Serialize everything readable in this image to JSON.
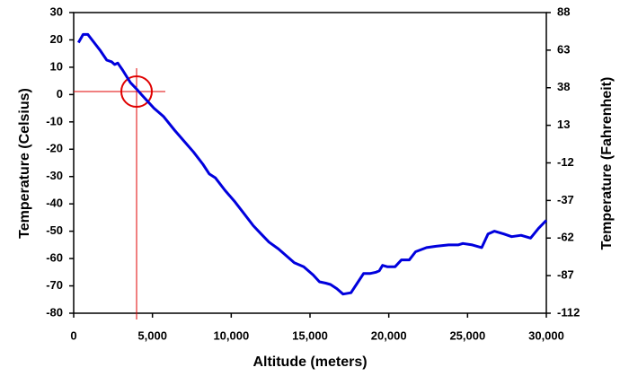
{
  "chart_data": {
    "type": "line",
    "x_label": "Altitude (meters)",
    "y_label": "Temperature (Celsius)",
    "y2_label": "Temperature (Fahrenheit)",
    "color": "#0000dd",
    "x": [
      300,
      600,
      900,
      1300,
      1700,
      2100,
      2400,
      2600,
      2800,
      3100,
      3600,
      4000,
      4300,
      4700,
      5100,
      5700,
      6400,
      7000,
      7600,
      8200,
      8600,
      9000,
      9600,
      10200,
      10800,
      11400,
      11900,
      12400,
      13000,
      13600,
      14000,
      14600,
      15200,
      15600,
      16000,
      16300,
      16700,
      17100,
      17600,
      18000,
      18400,
      18800,
      19200,
      19400,
      19600,
      19900,
      20400,
      20800,
      21300,
      21700,
      22400,
      23000,
      23800,
      24400,
      24700,
      25300,
      25900,
      26300,
      26700,
      27300,
      27800,
      28400,
      29000,
      29500,
      30000
    ],
    "values": [
      19,
      22,
      22,
      19,
      16,
      12.6,
      12,
      11,
      11.5,
      9,
      4.4,
      2,
      0,
      -2.5,
      -5,
      -8,
      -13,
      -17,
      -21,
      -25.5,
      -29,
      -30.5,
      -35,
      -39,
      -43.5,
      -48,
      -51,
      -54,
      -56.5,
      -59.5,
      -61.5,
      -63,
      -66,
      -68.5,
      -69,
      -69.5,
      -71,
      -73,
      -72.5,
      -69,
      -65.5,
      -65.5,
      -65,
      -64.5,
      -62.5,
      -63,
      -63,
      -60.5,
      -60.5,
      -57.5,
      -56,
      -55.5,
      -55,
      -55,
      -54.5,
      -55,
      -56,
      -51,
      -50,
      -51,
      -52,
      -51.5,
      -52.5,
      -49,
      -46
    ],
    "xlim": [
      0,
      30000
    ],
    "xticks": [
      0,
      {
        "value": 5000,
        "label": "5,000"
      },
      {
        "value": 10000,
        "label": "10,000"
      },
      {
        "value": 15000,
        "label": "15,000"
      },
      {
        "value": 20000,
        "label": "20,000"
      },
      {
        "value": 25000,
        "label": "25,000"
      },
      {
        "value": 30000,
        "label": "30,000"
      }
    ],
    "ylim": [
      -80,
      30
    ],
    "yticks": [
      -80,
      -70,
      -60,
      -50,
      -40,
      -30,
      -20,
      -10,
      0,
      10,
      20,
      30
    ],
    "y2lim": [
      -112,
      88
    ],
    "y2ticks": [
      -112,
      -87,
      -62,
      -37,
      -12,
      13,
      38,
      63,
      88
    ]
  }
}
